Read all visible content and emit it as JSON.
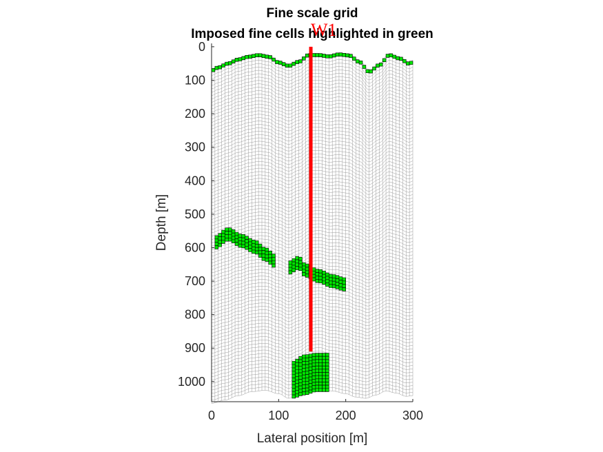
{
  "chart_data": {
    "type": "grid",
    "title": [
      "Fine scale grid",
      "Imposed fine cells highlighted in green"
    ],
    "xlabel": "Lateral position [m]",
    "ylabel": "Depth [m]",
    "xlim": [
      0,
      300
    ],
    "ylim": [
      1060,
      -10
    ],
    "xticks": [
      "0",
      "100",
      "200",
      "300"
    ],
    "xtick_values": [
      0,
      100,
      200,
      300
    ],
    "yticks": [
      "0",
      "100",
      "200",
      "300",
      "400",
      "500",
      "600",
      "700",
      "800",
      "900",
      "1000"
    ],
    "ytick_values": [
      0,
      100,
      200,
      300,
      400,
      500,
      600,
      700,
      800,
      900,
      1000
    ],
    "grid_nx": 60,
    "grid_nz": 100,
    "top_surface": {
      "x": [
        0,
        10,
        25,
        40,
        55,
        70,
        85,
        100,
        115,
        130,
        145,
        160,
        175,
        190,
        205,
        220,
        235,
        250,
        265,
        280,
        295,
        300
      ],
      "depth": [
        66,
        57,
        45,
        33,
        25,
        20,
        25,
        42,
        52,
        40,
        20,
        20,
        24,
        18,
        21,
        40,
        70,
        50,
        20,
        30,
        46,
        40
      ]
    },
    "bottom_surface": {
      "x": [
        0,
        20,
        40,
        60,
        80,
        100,
        115,
        130,
        145,
        160,
        180,
        200,
        215,
        230,
        245,
        260,
        275,
        290,
        300
      ],
      "depth": [
        1065,
        1055,
        1042,
        1030,
        1026,
        1036,
        1050,
        1038,
        1022,
        1018,
        1028,
        1036,
        1046,
        1050,
        1040,
        1028,
        1034,
        1044,
        1042
      ]
    },
    "imposed_cells": [
      {
        "name": "top layer",
        "x_range": [
          0,
          300
        ],
        "depth_top": "top surface",
        "thickness": 10
      },
      {
        "name": "left dipping band",
        "x": [
          5,
          25,
          45,
          65,
          80,
          95
        ],
        "depth_top": [
          565,
          540,
          560,
          578,
          600,
          620
        ],
        "thickness": 35
      },
      {
        "name": "right dipping band",
        "x": [
          115,
          130,
          140,
          160,
          180,
          200
        ],
        "depth_top": [
          640,
          625,
          648,
          665,
          680,
          690
        ],
        "thickness": 35
      },
      {
        "name": "lower block",
        "x_range": [
          120,
          175
        ],
        "depth_top": [
          940,
          920,
          915,
          915
        ],
        "depth_bottom": [
          1050,
          1040,
          1030,
          1030
        ]
      }
    ],
    "well": {
      "name": "W1",
      "x": 148,
      "depth_range": [
        0,
        910
      ],
      "color": "#ff0000"
    },
    "colors": {
      "grid_line": "#9a9a9a",
      "imposed_fill": "#00e600",
      "imposed_edge": "#000000",
      "well": "#ff0000",
      "axis": "#262626"
    }
  }
}
